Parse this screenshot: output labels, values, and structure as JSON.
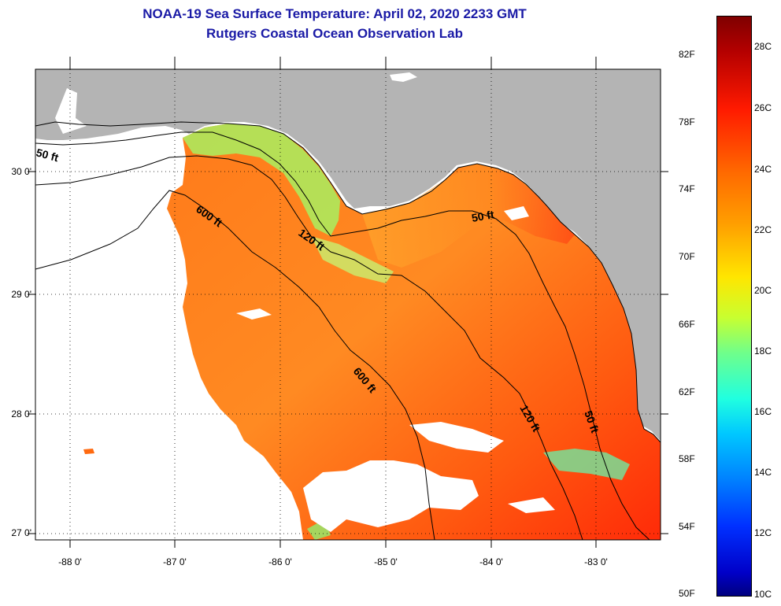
{
  "title": {
    "line1": "NOAA-19 Sea Surface Temperature:  April 02, 2020 2233 GMT",
    "line2": "Rutgers Coastal Ocean Observation Lab"
  },
  "axes": {
    "latitude_labels": [
      "30 0'",
      "29 0'",
      "28 0'",
      "27 0'"
    ],
    "longitude_labels": [
      "-88 0'",
      "-87 0'",
      "-86 0'",
      "-85 0'",
      "-84 0'",
      "-83 0'"
    ]
  },
  "contours": {
    "c50_west": "50 ft",
    "c600_north": "600 ft",
    "c120_north": "120 ft",
    "c50_east": "50 ft",
    "c600_south": "600 ft",
    "c120_south": "120 ft",
    "c50_south": "50 ft"
  },
  "colorbar": {
    "fahrenheit": [
      "82F",
      "78F",
      "74F",
      "70F",
      "66F",
      "62F",
      "58F",
      "54F",
      "50F"
    ],
    "celsius": [
      "28C",
      "26C",
      "24C",
      "22C",
      "20C",
      "18C",
      "16C",
      "14C",
      "12C",
      "10C"
    ]
  },
  "colors": {
    "land": "#b4b4b4",
    "warm_water": "#ff6a10",
    "cool_water": "#a8f060",
    "title": "#1a1aa6"
  }
}
